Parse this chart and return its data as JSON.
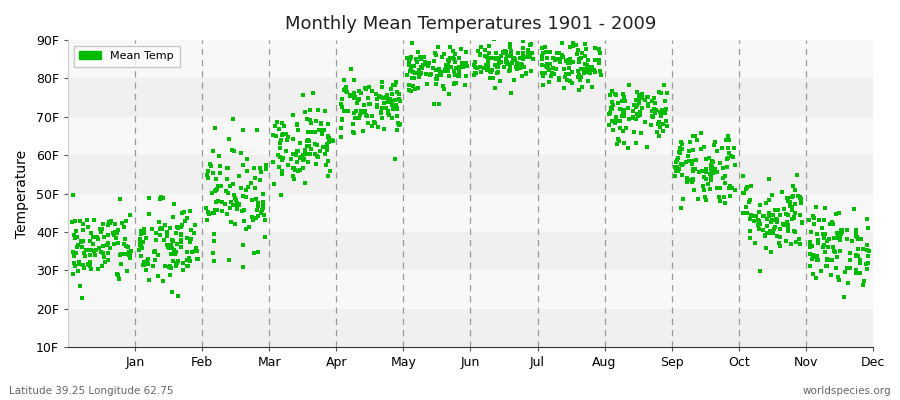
{
  "title": "Monthly Mean Temperatures 1901 - 2009",
  "ylabel": "Temperature",
  "xlabel_months": [
    "Jan",
    "Feb",
    "Mar",
    "Apr",
    "May",
    "Jun",
    "Jul",
    "Aug",
    "Sep",
    "Oct",
    "Nov",
    "Dec"
  ],
  "ytick_labels": [
    "10F",
    "20F",
    "30F",
    "40F",
    "50F",
    "60F",
    "70F",
    "80F",
    "90F"
  ],
  "ytick_values": [
    10,
    20,
    30,
    40,
    50,
    60,
    70,
    80,
    90
  ],
  "ymin": 10,
  "ymax": 90,
  "dot_color": "#00bb00",
  "dot_size": 6,
  "legend_label": "Mean Temp",
  "bottom_left_text": "Latitude 39.25 Longitude 62.75",
  "bottom_right_text": "worldspecies.org",
  "monthly_means": [
    36,
    36,
    50,
    63,
    73,
    82,
    85,
    83,
    71,
    57,
    44,
    36
  ],
  "monthly_stds": [
    5,
    6,
    7,
    5,
    4,
    3,
    3,
    3,
    4,
    5,
    5,
    5
  ],
  "n_years": 109,
  "band_colors": [
    "#f0f0f0",
    "#f8f8f8"
  ],
  "bg_color": "#ffffff",
  "fig_bg": "#ffffff",
  "dashed_line_color": "#999999",
  "spine_color": "#cccccc"
}
